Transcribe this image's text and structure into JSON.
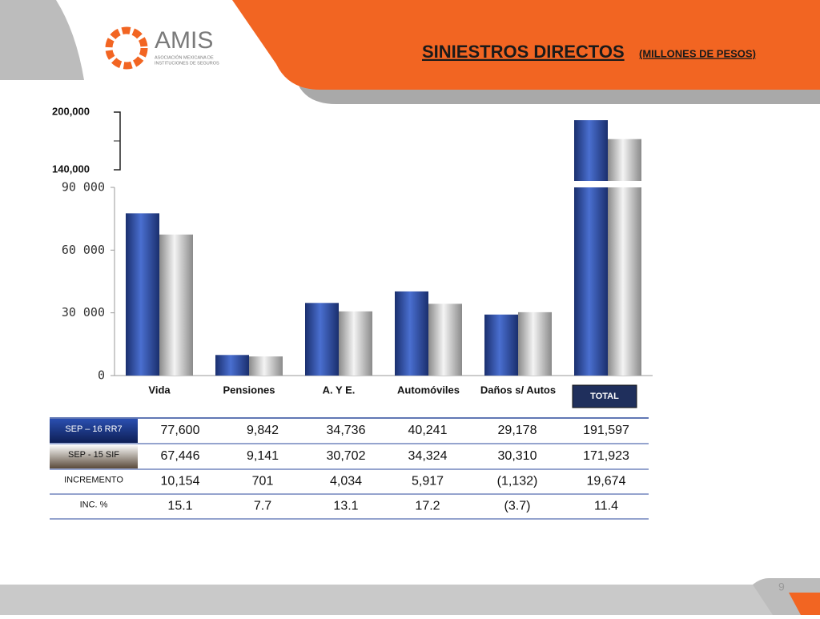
{
  "logo": {
    "name": "AMIS",
    "tagline_1": "ASOCIACIÓN MEXICANA DE",
    "tagline_2": "INSTITUCIONES DE SEGUROS"
  },
  "page_number": "9",
  "chart_data": {
    "type": "bar",
    "title": "SINIESTROS DIRECTOS",
    "subtitle": "(MILLONES DE PESOS)",
    "categories": [
      "Vida",
      "Pensiones",
      "A. Y E.",
      "Automóviles",
      "Daños s/ Autos",
      "TOTAL"
    ],
    "series": [
      {
        "name": "SEP – 16 RR7",
        "color": "#2b4a9c",
        "values": [
          77600,
          9842,
          34736,
          40241,
          29178,
          191597
        ],
        "value_labels": [
          "77,600",
          "9,842",
          "34,736",
          "40,241",
          "29,178",
          "191,597"
        ]
      },
      {
        "name": "SEP -  15 SIF",
        "color": "#bdbdbd",
        "values": [
          67446,
          9141,
          30702,
          34324,
          30310,
          171923
        ],
        "value_labels": [
          "67,446",
          "9,141",
          "30,702",
          "34,324",
          "30,310",
          "171,923"
        ]
      }
    ],
    "ylim": [
      0,
      90000
    ],
    "yticks": [
      0,
      {
        "value": 30000,
        "label": "30 000"
      },
      {
        "value": 60000,
        "label": "60 000"
      },
      {
        "value": 90000,
        "label": "90 000"
      }
    ],
    "upper_ylim": [
      140000,
      200000
    ],
    "upper_yticks": [
      {
        "value": 140000,
        "label": "140,000"
      },
      {
        "value": 200000,
        "label": "200,000"
      }
    ]
  },
  "table": {
    "rows": [
      {
        "label": "INCREMENTO",
        "cells": [
          "10,154",
          "701",
          "4,034",
          "5,917",
          "(1,132)",
          "19,674"
        ]
      },
      {
        "label": "INC. %",
        "cells": [
          "15.1",
          "7.7",
          "13.1",
          "17.2",
          "(3.7)",
          "11.4"
        ]
      }
    ]
  }
}
